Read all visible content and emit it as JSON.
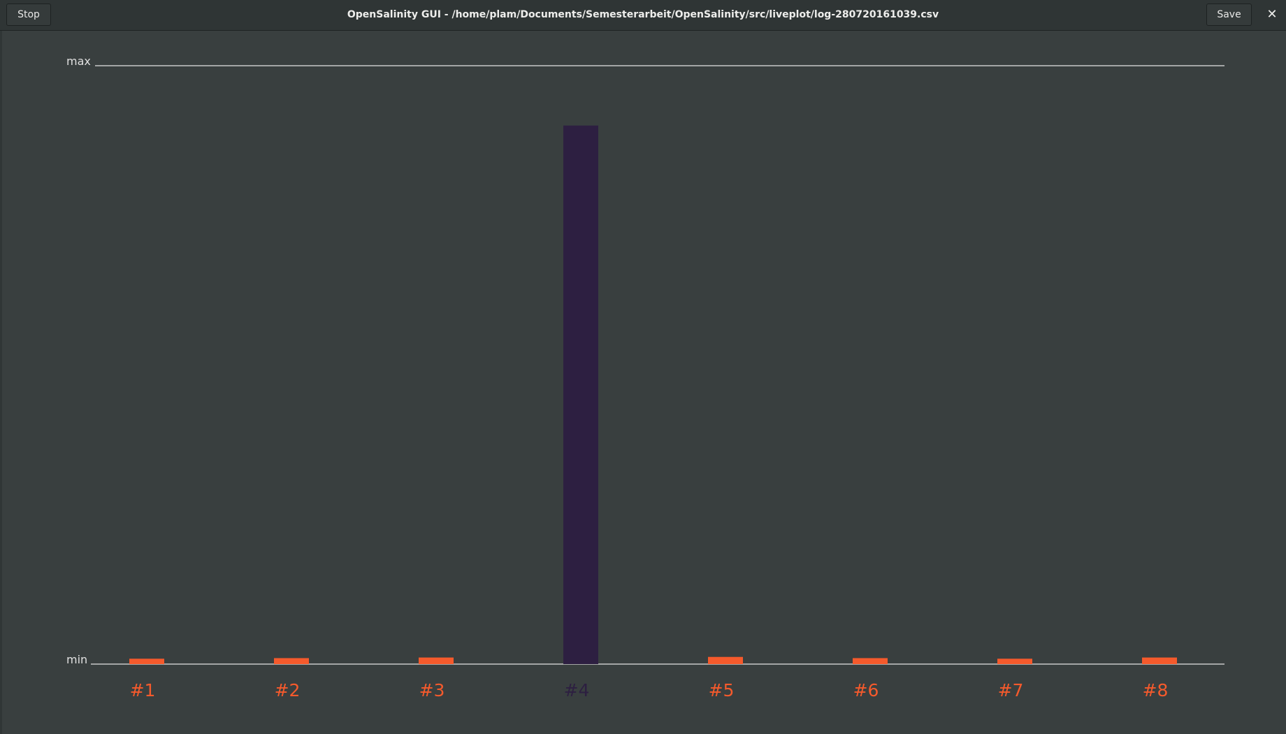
{
  "window": {
    "title": "OpenSalinity GUI - /home/plam/Documents/Semesterarbeit/OpenSalinity/src/liveplot/log-280720161039.csv",
    "stop_label": "Stop",
    "save_label": "Save",
    "close_icon": "close-icon",
    "close_glyph": "✕"
  },
  "colors": {
    "background": "#393f3f",
    "bar_default": "#f55a2c",
    "bar_highlight": "#2d1f41",
    "axis_line": "#c8c8c8",
    "axis_text": "#e0e0e0"
  },
  "chart_data": {
    "type": "bar",
    "title": "",
    "ymax_label": "max",
    "ymin_label": "min",
    "ylim": [
      0,
      1
    ],
    "categories": [
      "#1",
      "#2",
      "#3",
      "#4",
      "#5",
      "#6",
      "#7",
      "#8"
    ],
    "values": [
      0.009,
      0.01,
      0.011,
      0.9,
      0.012,
      0.01,
      0.009,
      0.011
    ],
    "highlighted_index": 3
  }
}
